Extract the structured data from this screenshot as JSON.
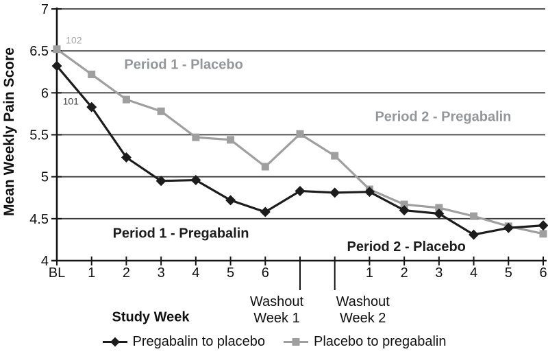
{
  "chart_data": {
    "type": "line",
    "title": "",
    "ylabel": "Mean Weekly Pain Score",
    "xlabel": "Study Week",
    "ylim": [
      4,
      7
    ],
    "ytick_labels": [
      "4",
      "4.5",
      "5",
      "5.5",
      "6",
      "6.5",
      "7"
    ],
    "grid": "horizontal",
    "legend_position": "bottom",
    "x_ticks": [
      {
        "label": "BL"
      },
      {
        "label": "1"
      },
      {
        "label": "2"
      },
      {
        "label": "3"
      },
      {
        "label": "4"
      },
      {
        "label": "5"
      },
      {
        "label": "6"
      },
      {
        "label_lines": [
          "Washout",
          "Week 1"
        ],
        "long_tick": true
      },
      {
        "label_lines": [
          "Washout",
          "Week 2"
        ],
        "long_tick": true
      },
      {
        "label": "1"
      },
      {
        "label": "2"
      },
      {
        "label": "3"
      },
      {
        "label": "4"
      },
      {
        "label": "5"
      },
      {
        "label": "6"
      }
    ],
    "series": [
      {
        "name": "Pregabalin to placebo",
        "color": "#1c1c1c",
        "marker": "diamond",
        "values": [
          6.32,
          5.83,
          5.23,
          4.95,
          4.96,
          4.72,
          4.58,
          4.83,
          4.81,
          4.82,
          4.6,
          4.56,
          4.31,
          4.39,
          4.42
        ]
      },
      {
        "name": "Placebo to pregabalin",
        "color": "#9f9f9f",
        "marker": "square",
        "values": [
          6.52,
          6.22,
          5.92,
          5.78,
          5.47,
          5.44,
          5.12,
          5.51,
          5.25,
          4.85,
          4.67,
          4.63,
          4.53,
          4.41,
          4.32
        ]
      }
    ],
    "annotations": [
      {
        "text": "Period 1 - Placebo",
        "kind": "period",
        "color": "#94979a",
        "x_index": 3.65,
        "value": 6.34
      },
      {
        "text": "Period 2 - Pregabalin",
        "kind": "period",
        "color": "#94979a",
        "x_index": 11.12,
        "value": 5.72
      },
      {
        "text": "Period 1 - Pregabalin",
        "kind": "period",
        "color": "#1c1c1c",
        "x_index": 3.57,
        "value": 4.33
      },
      {
        "text": "Period 2 - Placebo",
        "kind": "period",
        "color": "#1c1c1c",
        "x_index": 10.06,
        "value": 4.17
      },
      {
        "text": "102",
        "kind": "n-count",
        "color": "#a8a8a8",
        "x_index": 0.49,
        "value": 6.63
      },
      {
        "text": "101",
        "kind": "n-count",
        "color": "#3f3f3f",
        "x_index": 0.4,
        "value": 5.9
      }
    ]
  }
}
